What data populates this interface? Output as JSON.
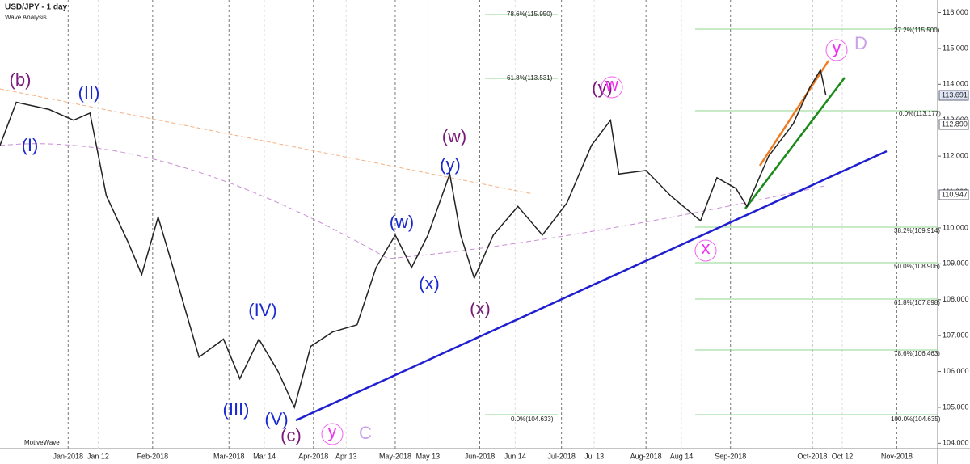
{
  "chart_data": {
    "type": "line",
    "title": "USD/JPY - 1 day",
    "subtitle": "Wave Analysis",
    "watermark": "MotiveWave",
    "color": "#222222",
    "x": [
      "2017-12-07",
      "2017-12-13",
      "2017-12-25",
      "2018-01-03",
      "2018-01-09",
      "2018-01-15",
      "2018-01-23",
      "2018-01-28",
      "2018-02-03",
      "2018-02-10",
      "2018-02-18",
      "2018-02-27",
      "2018-03-05",
      "2018-03-12",
      "2018-03-19",
      "2018-03-25",
      "2018-03-31",
      "2018-04-08",
      "2018-04-17",
      "2018-04-24",
      "2018-05-01",
      "2018-05-07",
      "2018-05-13",
      "2018-05-21",
      "2018-05-25",
      "2018-05-30",
      "2018-06-06",
      "2018-06-15",
      "2018-06-24",
      "2018-07-03",
      "2018-07-12",
      "2018-07-19",
      "2018-07-22",
      "2018-08-01",
      "2018-08-10",
      "2018-08-21",
      "2018-08-27",
      "2018-09-03",
      "2018-09-07",
      "2018-09-15",
      "2018-09-24",
      "2018-09-30",
      "2018-10-04",
      "2018-10-06"
    ],
    "values": [
      112.3,
      113.5,
      113.3,
      113.0,
      113.2,
      110.9,
      109.6,
      108.7,
      110.3,
      108.5,
      106.4,
      106.9,
      105.8,
      106.9,
      106.0,
      105.0,
      106.7,
      107.1,
      107.3,
      108.9,
      109.8,
      108.9,
      109.8,
      111.5,
      109.8,
      108.6,
      109.8,
      110.6,
      109.8,
      110.7,
      112.3,
      113.0,
      111.5,
      111.6,
      110.9,
      110.2,
      111.4,
      111.1,
      110.6,
      112.0,
      112.9,
      113.9,
      114.4,
      113.7
    ],
    "xlim": [
      "2017-12-07",
      "2018-11-16"
    ],
    "xticks": [
      {
        "value": "2018-01-01",
        "label": "Jan-2018"
      },
      {
        "value": "2018-01-12",
        "label": "Jan 12"
      },
      {
        "value": "2018-02-01",
        "label": "Feb-2018"
      },
      {
        "value": "2018-03-01",
        "label": "Mar-2018"
      },
      {
        "value": "2018-03-14",
        "label": "Mar 14"
      },
      {
        "value": "2018-04-01",
        "label": "Apr-2018"
      },
      {
        "value": "2018-04-13",
        "label": "Apr 13"
      },
      {
        "value": "2018-05-01",
        "label": "May-2018"
      },
      {
        "value": "2018-05-13",
        "label": "May 13"
      },
      {
        "value": "2018-06-01",
        "label": "Jun-2018"
      },
      {
        "value": "2018-06-14",
        "label": "Jun 14"
      },
      {
        "value": "2018-07-01",
        "label": "Jul-2018"
      },
      {
        "value": "2018-07-13",
        "label": "Jul 13"
      },
      {
        "value": "2018-08-01",
        "label": "Aug-2018"
      },
      {
        "value": "2018-08-14",
        "label": "Aug 14"
      },
      {
        "value": "2018-09-01",
        "label": "Sep-2018"
      },
      {
        "value": "2018-10-01",
        "label": "Oct-2018"
      },
      {
        "value": "2018-10-12",
        "label": "Oct 12"
      },
      {
        "value": "2018-11-01",
        "label": "Nov-2018"
      }
    ],
    "ylim": [
      103.85,
      116.35
    ],
    "yticks": [
      {
        "value": 104,
        "label": "104.000"
      },
      {
        "value": 105,
        "label": "105.000"
      },
      {
        "value": 106,
        "label": "106.000"
      },
      {
        "value": 107,
        "label": "107.000"
      },
      {
        "value": 108,
        "label": "108.000"
      },
      {
        "value": 109,
        "label": "109.000"
      },
      {
        "value": 110,
        "label": "110.000"
      },
      {
        "value": 111,
        "label": "111.000"
      },
      {
        "value": 112,
        "label": "112.000"
      },
      {
        "value": 113,
        "label": "113.000"
      },
      {
        "value": 114,
        "label": "114.000"
      },
      {
        "value": 115,
        "label": "115.000"
      },
      {
        "value": 116,
        "label": "116.000"
      }
    ],
    "price_tags": [
      "113.691",
      "112.890",
      "110.947"
    ],
    "fib": [
      "78.6%(115.950)",
      "27.2%(115.500)",
      "61.8%(113.531)",
      "0.0%(113.177)",
      "38.2%(109.914)",
      "50.0%(108.906)",
      "61.8%(107.898)",
      "78.6%(106.463)",
      "100.0%(104.635)",
      "0.0%(104.633)"
    ],
    "waves": [
      "(b)",
      "(I)",
      "(II)",
      "(III)",
      "(IV)",
      "(V)",
      "(c)",
      "y",
      "C",
      "(w)",
      "(x)",
      "(y)",
      "(w)",
      "(x)",
      "(y)",
      "w",
      "x",
      "y",
      "D"
    ]
  }
}
